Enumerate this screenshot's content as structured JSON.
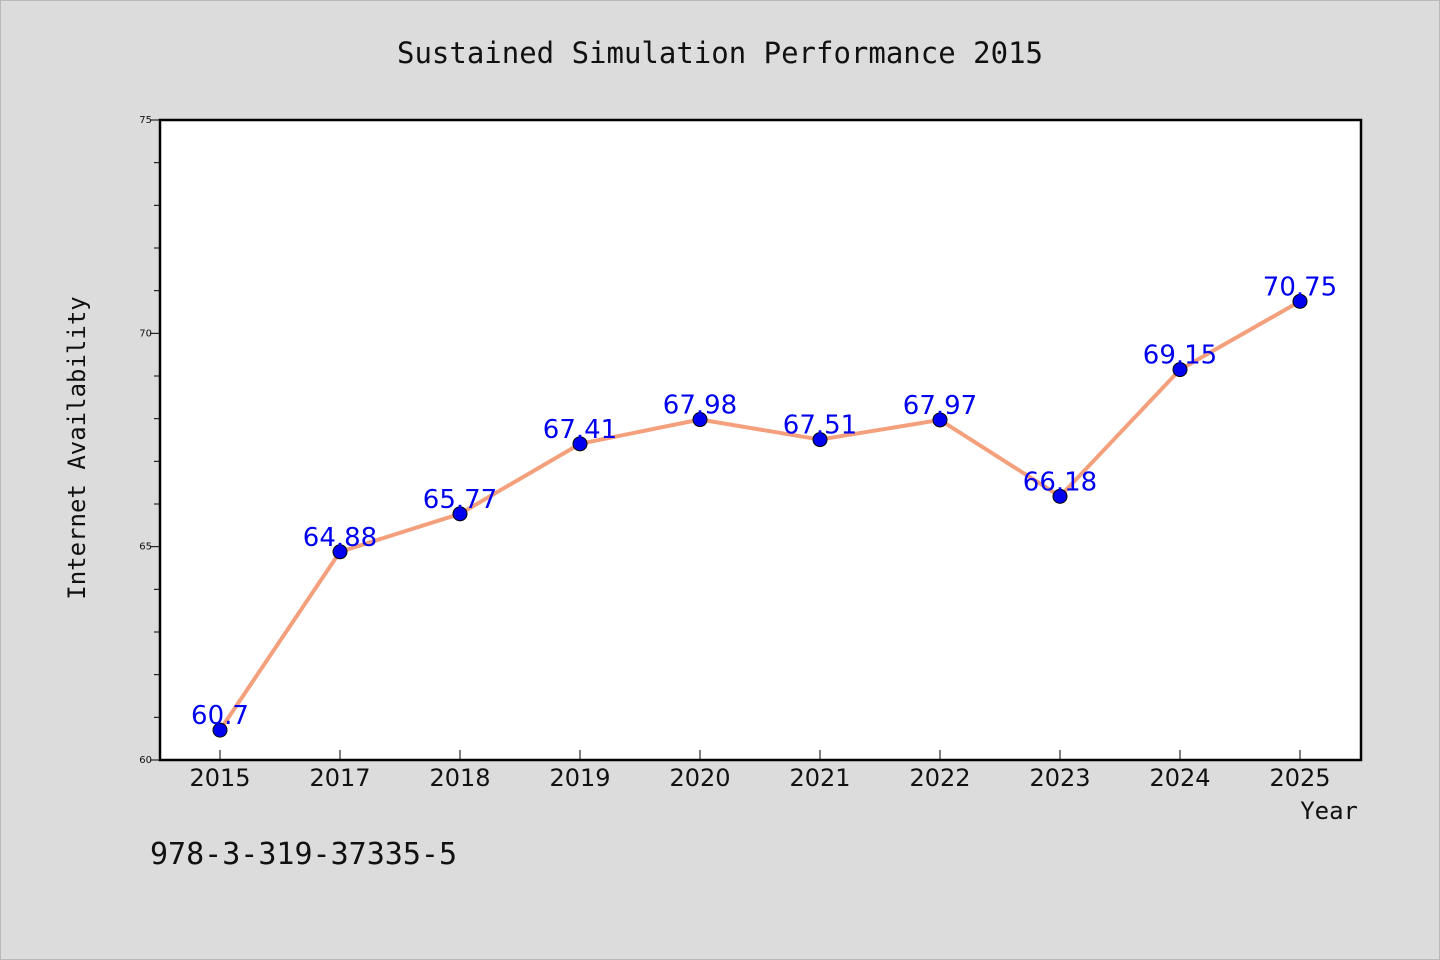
{
  "chart_data": {
    "type": "line",
    "title": "Sustained Simulation Performance 2015",
    "xlabel": "Year",
    "ylabel": "Internet Availability",
    "categories": [
      "2015",
      "2017",
      "2018",
      "2019",
      "2020",
      "2021",
      "2022",
      "2023",
      "2024",
      "2025"
    ],
    "series": [
      {
        "values": [
          60.7,
          64.88,
          65.77,
          67.41,
          67.98,
          67.51,
          67.97,
          66.18,
          69.15,
          70.75
        ],
        "line_color": "#f4a07c",
        "marker_color": "#0000ee",
        "label_color": "#0000ee"
      }
    ],
    "data_labels": [
      "60.7",
      "64.88",
      "65.77",
      "67.41",
      "67.98",
      "67.51",
      "67.97",
      "66.18",
      "69.15",
      "70.75"
    ],
    "ylim": [
      60,
      75
    ],
    "yticks": [
      "60",
      "65",
      "70",
      "75"
    ],
    "grid": false,
    "legend": "none"
  },
  "footer_text": "978-3-319-37335-5"
}
